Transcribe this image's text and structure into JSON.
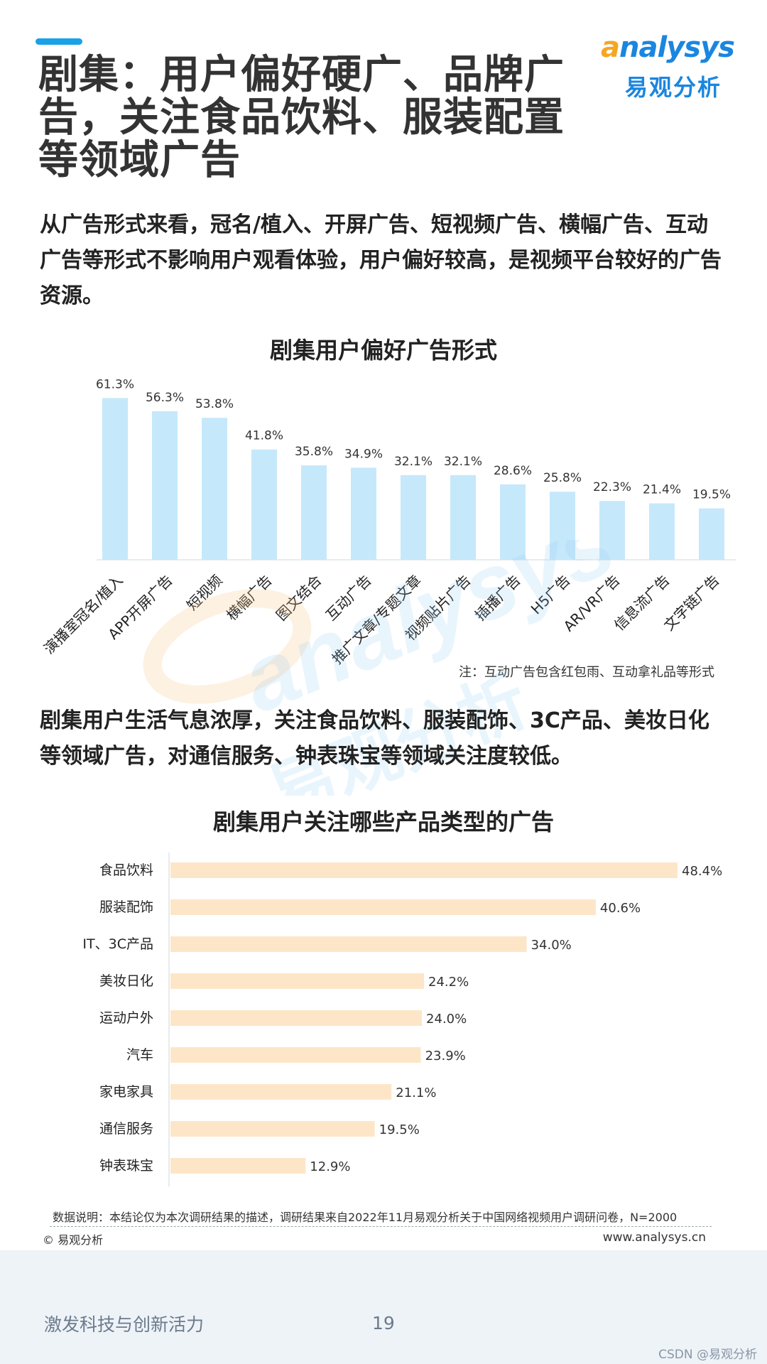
{
  "header": {
    "title": "剧集：用户偏好硬广、品牌广告，关注食品饮料、服装配置等领域广告",
    "logo_en": "nalysys",
    "logo_o": "a",
    "logo_cn": "易观分析"
  },
  "intro": "从广告形式来看，冠名/植入、开屏广告、短视频广告、横幅广告、互动广告等形式不影响用户观看体验，用户偏好较高，是视频平台较好的广告资源。",
  "mid_text": "剧集用户生活气息浓厚，关注食品饮料、服装配饰、3C产品、美妆日化等领域广告，对通信服务、钟表珠宝等领域关注度较低。",
  "colors": {
    "bar1": "#c6e8fb",
    "bar2": "#fde6c8",
    "accent": "#1aa1e6",
    "brand_blue": "#1a86e0",
    "brand_orange": "#f5a623"
  },
  "chart_data": [
    {
      "type": "bar",
      "title": "剧集用户偏好广告形式",
      "categories": [
        "演播室冠名/植入",
        "APP开屏广告",
        "短视频",
        "横幅广告",
        "图文结合",
        "互动广告",
        "推广文章/专题文章",
        "视频贴片广告",
        "插播广告",
        "H5广告",
        "AR/VR广告",
        "信息流广告",
        "文字链广告"
      ],
      "values": [
        61.3,
        56.3,
        53.8,
        41.8,
        35.8,
        34.9,
        32.1,
        32.1,
        28.6,
        25.8,
        22.3,
        21.4,
        19.5
      ],
      "labels": [
        "61.3%",
        "56.3%",
        "53.8%",
        "41.8%",
        "35.8%",
        "34.9%",
        "32.1%",
        "32.1%",
        "28.6%",
        "25.8%",
        "22.3%",
        "21.4%",
        "19.5%"
      ],
      "unit": "%",
      "ylim": [
        0,
        70
      ],
      "note": "注：互动广告包含红包雨、互动拿礼品等形式"
    },
    {
      "type": "bar",
      "orientation": "horizontal",
      "title": "剧集用户关注哪些产品类型的广告",
      "categories": [
        "食品饮料",
        "服装配饰",
        "IT、3C产品",
        "美妆日化",
        "运动户外",
        "汽车",
        "家电家具",
        "通信服务",
        "钟表珠宝"
      ],
      "values": [
        48.4,
        40.6,
        34.0,
        24.2,
        24.0,
        23.9,
        21.1,
        19.5,
        12.9
      ],
      "labels": [
        "48.4%",
        "40.6%",
        "34.0%",
        "24.2%",
        "24.0%",
        "23.9%",
        "21.1%",
        "19.5%",
        "12.9%"
      ],
      "unit": "%",
      "xlim": [
        0,
        48.4
      ]
    }
  ],
  "footer": {
    "data_note": "数据说明：本结论仅为本次调研结果的描述，调研结果来自2022年11月易观分析关于中国网络视频用户调研问卷，N=2000",
    "copyright": "© 易观分析",
    "website": "www.analysys.cn",
    "slogan": "激发科技与创新活力",
    "page": "19",
    "credit": "CSDN @易观分析"
  },
  "watermark": {
    "en": "analysys",
    "cn": "易观分析"
  }
}
